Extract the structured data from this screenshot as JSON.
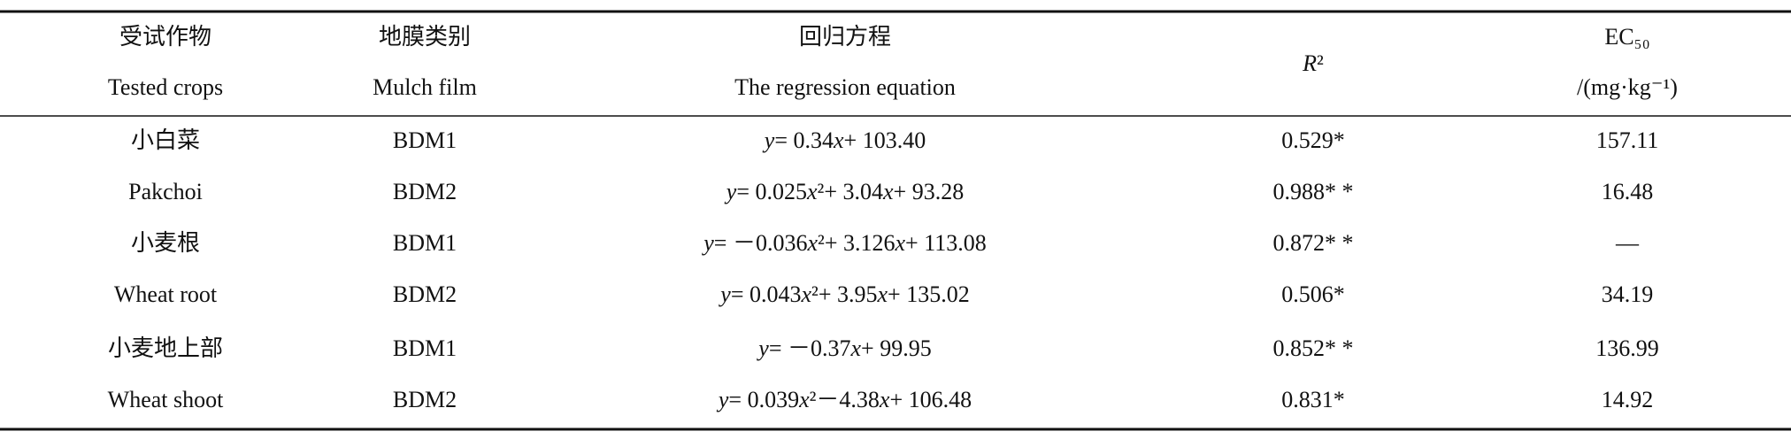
{
  "table": {
    "header": [
      [
        "受试作物",
        "Tested crops"
      ],
      [
        "地膜类别",
        "Mulch film"
      ],
      [
        "回归方程",
        "The regression equation"
      ],
      [
        "R²"
      ],
      [
        "EC₅₀",
        "/(mg·kg⁻¹)"
      ]
    ],
    "rows": [
      [
        "小白菜",
        "BDM1",
        "y= 0.34x+ 103.40",
        "0.529*",
        "157.11"
      ],
      [
        "Pakchoi",
        "BDM2",
        "y= 0.025x²+ 3.04x+ 93.28",
        "0.988* *",
        "16.48"
      ],
      [
        "小麦根",
        "BDM1",
        "y= －0.036x²+ 3.126x+ 113.08",
        "0.872* *",
        "—"
      ],
      [
        "Wheat root",
        "BDM2",
        "y= 0.043x²+ 3.95x+ 135.02",
        "0.506*",
        "34.19"
      ],
      [
        "小麦地上部",
        "BDM1",
        "y= －0.37x+ 99.95",
        "0.852* *",
        "136.99"
      ],
      [
        "Wheat shoot",
        "BDM2",
        "y= 0.039x²－4.38x+ 106.48",
        "0.831*",
        "14.92"
      ]
    ]
  }
}
